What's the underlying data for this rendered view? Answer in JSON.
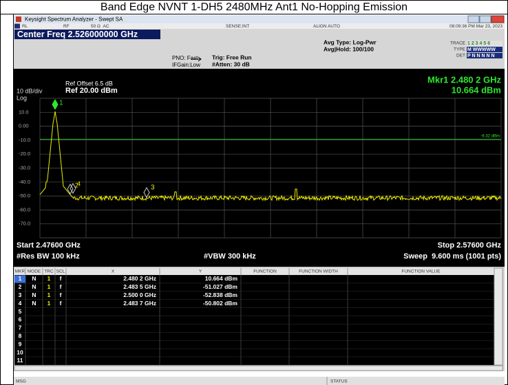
{
  "title": "Band Edge NVNT 1-DH5 2480MHz Ant1 No-Hopping Emission",
  "window": {
    "title": "Keysight Spectrum Analyzer - Swept SA"
  },
  "status_bar": {
    "rl": "RL",
    "rf": "RF",
    "impedance": "50 Ω  AC",
    "sense": "SENSE:INT",
    "align": "ALIGN AUTO",
    "datetime": "08:09:36 PM Mar 23, 2023"
  },
  "header": {
    "center_freq": "Center Freq 2.526000000 GHz",
    "pno": "PNO: Fast",
    "ifgain": "IFGain:Low",
    "trig": "Trig: Free Run",
    "atten": "#Atten: 30 dB",
    "avg_type": "Avg Type: Log-Pwr",
    "avg_hold": "Avg|Hold: 100/100",
    "trace": {
      "label": "TRACE",
      "value": "1 2 3 4 5 6"
    },
    "type": {
      "label": "TYPE",
      "value": "M WWWWW"
    },
    "det": {
      "label": "DET",
      "value": "P N N N N N"
    }
  },
  "graph": {
    "ref_offset": "Ref Offset 6.5 dB",
    "ref_level": "Ref 20.00 dBm",
    "scale": "10 dB/div",
    "scale_type": "Log",
    "marker_freq": "Mkr1 2.480 2 GHz",
    "marker_level": "10.664 dBm",
    "yticks": [
      "10.0",
      "0.00",
      "-10.0",
      "-20.0",
      "-30.0",
      "-40.0",
      "-50.0",
      "-60.0",
      "-70.0"
    ],
    "display_line": "-9.32 dBm",
    "start": "Start 2.47600 GHz",
    "stop": "Stop 2.57600 GHz",
    "rbw": "#Res BW 100 kHz",
    "vbw": "#VBW 300 kHz",
    "sweep": "Sweep  9.600 ms (1001 pts)"
  },
  "markers": {
    "columns": [
      "MKR",
      "MODE",
      "TRC",
      "SCL",
      "X",
      "Y",
      "FUNCTION",
      "FUNCTION WIDTH",
      "FUNCTION VALUE"
    ],
    "rows": [
      [
        "1",
        "N",
        "1",
        "f",
        "2.480 2 GHz",
        "10.664 dBm"
      ],
      [
        "2",
        "N",
        "1",
        "f",
        "2.483 5 GHz",
        "-51.027 dBm"
      ],
      [
        "3",
        "N",
        "1",
        "f",
        "2.500 0 GHz",
        "-52.838 dBm"
      ],
      [
        "4",
        "N",
        "1",
        "f",
        "2.483 7 GHz",
        "-50.802 dBm"
      ],
      [
        "5"
      ],
      [
        "6"
      ],
      [
        "7"
      ],
      [
        "8"
      ],
      [
        "9"
      ],
      [
        "10"
      ],
      [
        "11"
      ]
    ]
  },
  "footer": {
    "msg": "MSG",
    "status": "STATUS"
  }
}
